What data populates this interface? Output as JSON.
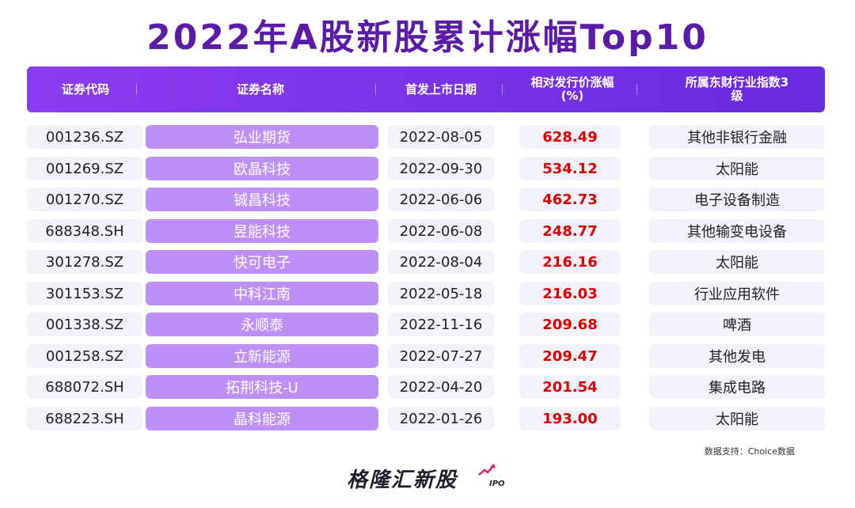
{
  "title": "2022年A股新股累计涨幅Top10",
  "columns": [
    "证券代码",
    "证券名称",
    "首发上市日期",
    "相对发行价涨幅(%)",
    "所属东财行业指数3级"
  ],
  "rows": [
    {
      "code": "001236.SZ",
      "name": "弘业期货",
      "date": "2022-08-05",
      "pct": "628.49",
      "industry": "其他非银行金融"
    },
    {
      "code": "001269.SZ",
      "name": "欧晶科技",
      "date": "2022-09-30",
      "pct": "534.12",
      "industry": "太阳能"
    },
    {
      "code": "001270.SZ",
      "name": "铖昌科技",
      "date": "2022-06-06",
      "pct": "462.73",
      "industry": "电子设备制造"
    },
    {
      "code": "688348.SH",
      "name": "昱能科技",
      "date": "2022-06-08",
      "pct": "248.77",
      "industry": "其他输变电设备"
    },
    {
      "code": "301278.SZ",
      "name": "快可电子",
      "date": "2022-08-04",
      "pct": "216.16",
      "industry": "太阳能"
    },
    {
      "code": "301153.SZ",
      "name": "中科江南",
      "date": "2022-05-18",
      "pct": "216.03",
      "industry": "行业应用软件"
    },
    {
      "code": "001338.SZ",
      "name": "永顺泰",
      "date": "2022-11-16",
      "pct": "209.68",
      "industry": "啤酒"
    },
    {
      "code": "001258.SZ",
      "name": "立新能源",
      "date": "2022-07-27",
      "pct": "209.47",
      "industry": "其他发电"
    },
    {
      "code": "688072.SH",
      "name": "拓荆科技-U",
      "date": "2022-04-20",
      "pct": "201.54",
      "industry": "集成电路"
    },
    {
      "code": "688223.SH",
      "name": "晶科能源",
      "date": "2022-01-26",
      "pct": "193.00",
      "industry": "太阳能"
    }
  ],
  "source": "数据支持：Choice数据",
  "brand": {
    "name": "格隆汇新股",
    "sub": "IPO"
  },
  "colors": {
    "title": "#5b1aa8",
    "header": "#7a34e8",
    "name_cell": "#bd8ff7",
    "row_cell": "#f3f1fa",
    "pct": "#e00000"
  }
}
